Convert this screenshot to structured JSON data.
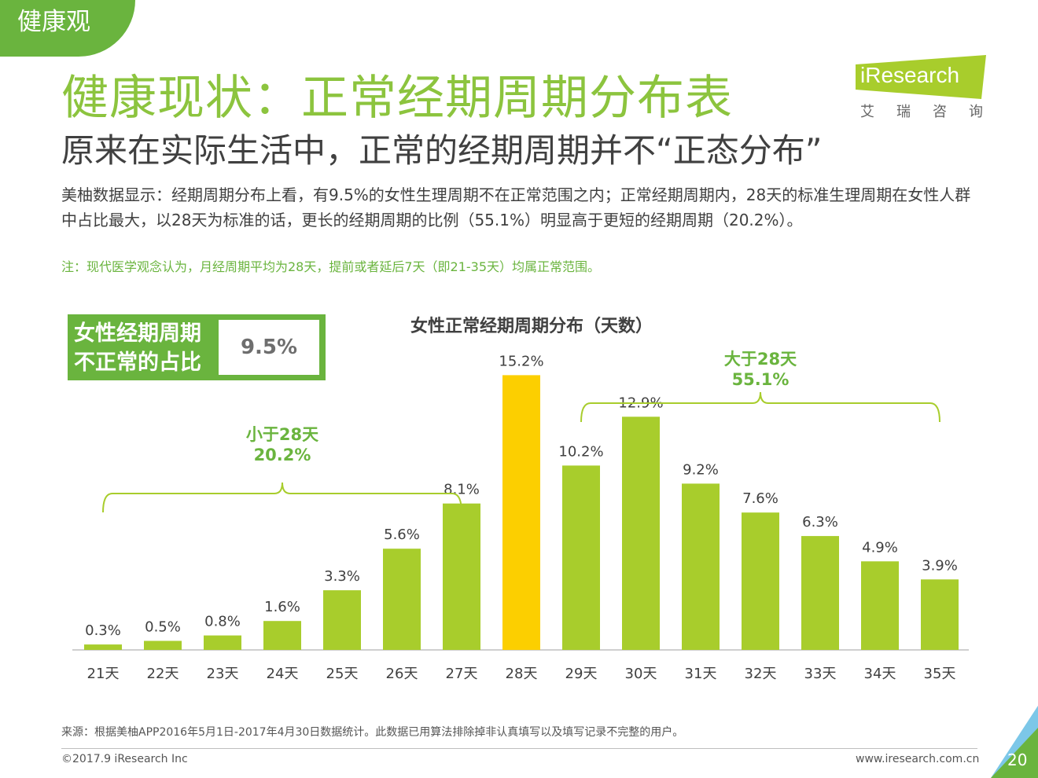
{
  "section_tab": "健康观",
  "title": "健康现状：正常经期周期分布表",
  "subtitle": "原来在实际生活中，正常的经期周期并不“正态分布”",
  "logo": {
    "text": "iResearch",
    "cn": "艾瑞咨询"
  },
  "description": "美柚数据显示：经期周期分布上看，有9.5%的女性生理周期不在正常范围之内；正常经期周期内，28天的标准生理周期在女性人群中占比最大，以28天为标准的话，更长的经期周期的比例（55.1%）明显高于更短的经期周期（20.2%）。",
  "note": "注：现代医学观念认为，月经周期平均为28天，提前或者延后7天（即21-35天）均属正常范围。",
  "stat_box": {
    "label_line1": "女性经期周期",
    "label_line2": "不正常的占比",
    "value": "9.5%"
  },
  "chart_data": {
    "type": "bar",
    "title": "女性正常经期周期分布（天数）",
    "categories": [
      "21天",
      "22天",
      "23天",
      "24天",
      "25天",
      "26天",
      "27天",
      "28天",
      "29天",
      "30天",
      "31天",
      "32天",
      "33天",
      "34天",
      "35天"
    ],
    "values": [
      0.3,
      0.5,
      0.8,
      1.6,
      3.3,
      5.6,
      8.1,
      15.2,
      10.2,
      12.9,
      9.2,
      7.6,
      6.3,
      4.9,
      3.9
    ],
    "value_labels": [
      "0.3%",
      "0.5%",
      "0.8%",
      "1.6%",
      "3.3%",
      "5.6%",
      "8.1%",
      "15.2%",
      "10.2%",
      "12.9%",
      "9.2%",
      "7.6%",
      "6.3%",
      "4.9%",
      "3.9%"
    ],
    "highlight_category": "28天",
    "colors": {
      "bar": "#a8cd2c",
      "highlight": "#fccf00",
      "brace": "#a8cd2c",
      "annotation_text": "#6ab43e"
    },
    "ylim": [
      0,
      16
    ],
    "annotations": [
      {
        "line1": "小于28天",
        "line2": "20.2%",
        "from": "21天",
        "to": "27天"
      },
      {
        "line1": "大于28天",
        "line2": "55.1%",
        "from": "29天",
        "to": "35天"
      }
    ]
  },
  "source": "来源：根据美柚APP2016年5月1日-2017年4月30日数据统计。此数据已用算法排除掉非认真填写以及填写记录不完整的用户。",
  "copyright": "©2017.9 iResearch Inc",
  "website": "www.iresearch.com.cn",
  "page_number": "20",
  "colors": {
    "brand_green": "#6ab43e",
    "title_green": "#8cc43e",
    "text": "#404040"
  }
}
